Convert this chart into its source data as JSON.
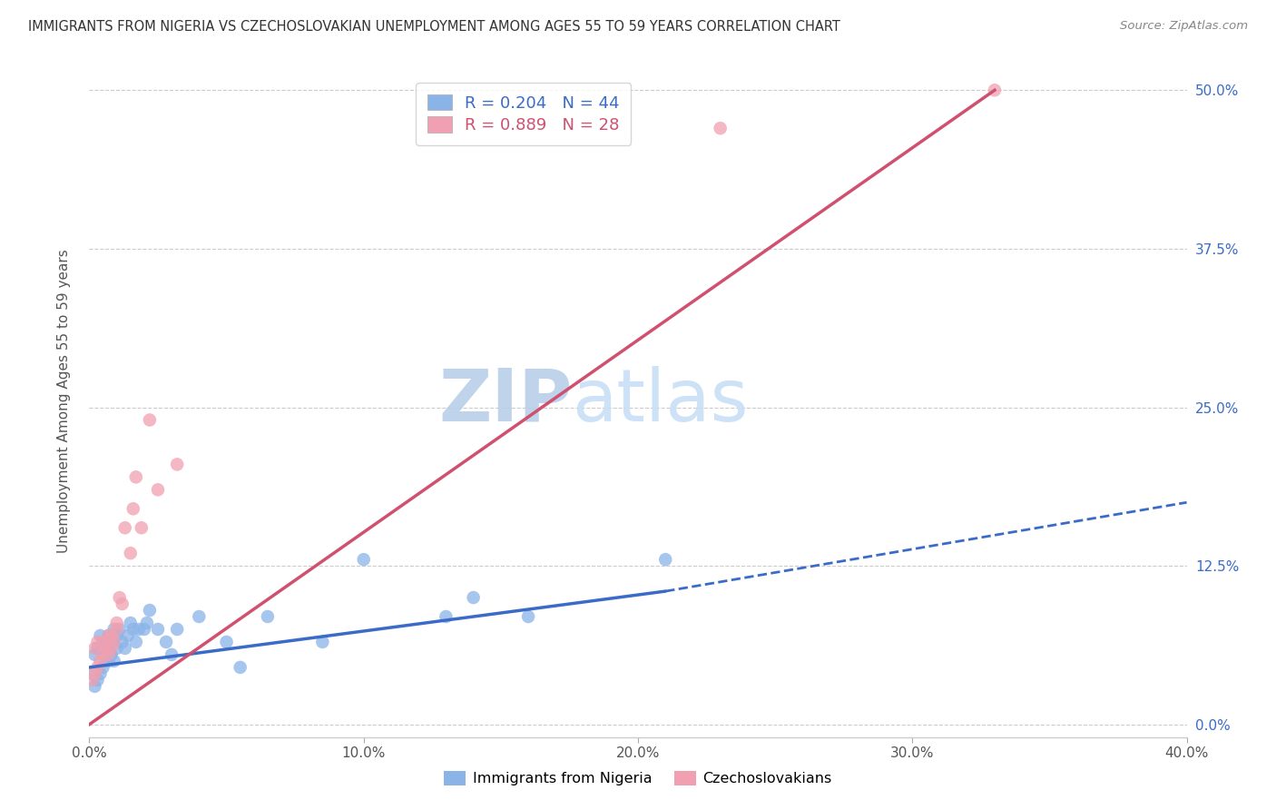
{
  "title": "IMMIGRANTS FROM NIGERIA VS CZECHOSLOVAKIAN UNEMPLOYMENT AMONG AGES 55 TO 59 YEARS CORRELATION CHART",
  "source": "Source: ZipAtlas.com",
  "ylabel": "Unemployment Among Ages 55 to 59 years",
  "label_nigeria": "Immigrants from Nigeria",
  "label_czech": "Czechoslovakians",
  "xlabel_ticks": [
    "0.0%",
    "",
    "10.0%",
    "",
    "20.0%",
    "",
    "30.0%",
    "",
    "40.0%"
  ],
  "xlabel_vals": [
    0.0,
    0.05,
    0.1,
    0.15,
    0.2,
    0.25,
    0.3,
    0.35,
    0.4
  ],
  "ylabel_ticks_right": [
    "50.0%",
    "37.5%",
    "25.0%",
    "12.5%",
    "0.0%"
  ],
  "ylabel_vals": [
    0.0,
    0.125,
    0.25,
    0.375,
    0.5
  ],
  "xlim": [
    0.0,
    0.4
  ],
  "ylim": [
    -0.01,
    0.52
  ],
  "legend1_r": "R = 0.204",
  "legend1_n": "N = 44",
  "legend2_r": "R = 0.889",
  "legend2_n": "N = 28",
  "nigeria_color": "#8ab4e8",
  "czech_color": "#f0a0b0",
  "nigeria_line_color": "#3a6bc9",
  "czech_line_color": "#d05070",
  "watermark_zip": "ZIP",
  "watermark_atlas": "atlas",
  "watermark_color": "#c8dff5",
  "nigeria_line_x0": 0.0,
  "nigeria_line_y0": 0.045,
  "nigeria_line_x1": 0.21,
  "nigeria_line_y1": 0.105,
  "nigeria_line_xdash_end": 0.4,
  "nigeria_line_ydash_end": 0.175,
  "czech_line_x0": 0.0,
  "czech_line_y0": 0.0,
  "czech_line_x1": 0.33,
  "czech_line_y1": 0.5,
  "nigeria_scatter_x": [
    0.001,
    0.002,
    0.002,
    0.003,
    0.003,
    0.004,
    0.004,
    0.005,
    0.005,
    0.006,
    0.006,
    0.007,
    0.007,
    0.008,
    0.008,
    0.009,
    0.009,
    0.01,
    0.01,
    0.011,
    0.012,
    0.013,
    0.014,
    0.015,
    0.016,
    0.017,
    0.018,
    0.02,
    0.021,
    0.022,
    0.025,
    0.028,
    0.03,
    0.032,
    0.04,
    0.05,
    0.055,
    0.065,
    0.085,
    0.1,
    0.13,
    0.14,
    0.16,
    0.21
  ],
  "nigeria_scatter_y": [
    0.04,
    0.03,
    0.055,
    0.035,
    0.06,
    0.04,
    0.07,
    0.045,
    0.06,
    0.05,
    0.065,
    0.05,
    0.07,
    0.055,
    0.065,
    0.05,
    0.075,
    0.06,
    0.07,
    0.075,
    0.065,
    0.06,
    0.07,
    0.08,
    0.075,
    0.065,
    0.075,
    0.075,
    0.08,
    0.09,
    0.075,
    0.065,
    0.055,
    0.075,
    0.085,
    0.065,
    0.045,
    0.085,
    0.065,
    0.13,
    0.085,
    0.1,
    0.085,
    0.13
  ],
  "czech_scatter_x": [
    0.001,
    0.002,
    0.002,
    0.003,
    0.003,
    0.004,
    0.005,
    0.005,
    0.006,
    0.007,
    0.007,
    0.008,
    0.008,
    0.009,
    0.01,
    0.01,
    0.011,
    0.012,
    0.013,
    0.015,
    0.016,
    0.017,
    0.019,
    0.022,
    0.025,
    0.032,
    0.23,
    0.33
  ],
  "czech_scatter_y": [
    0.035,
    0.04,
    0.06,
    0.045,
    0.065,
    0.05,
    0.055,
    0.065,
    0.06,
    0.055,
    0.07,
    0.06,
    0.07,
    0.065,
    0.075,
    0.08,
    0.1,
    0.095,
    0.155,
    0.135,
    0.17,
    0.195,
    0.155,
    0.24,
    0.185,
    0.205,
    0.47,
    0.5
  ]
}
